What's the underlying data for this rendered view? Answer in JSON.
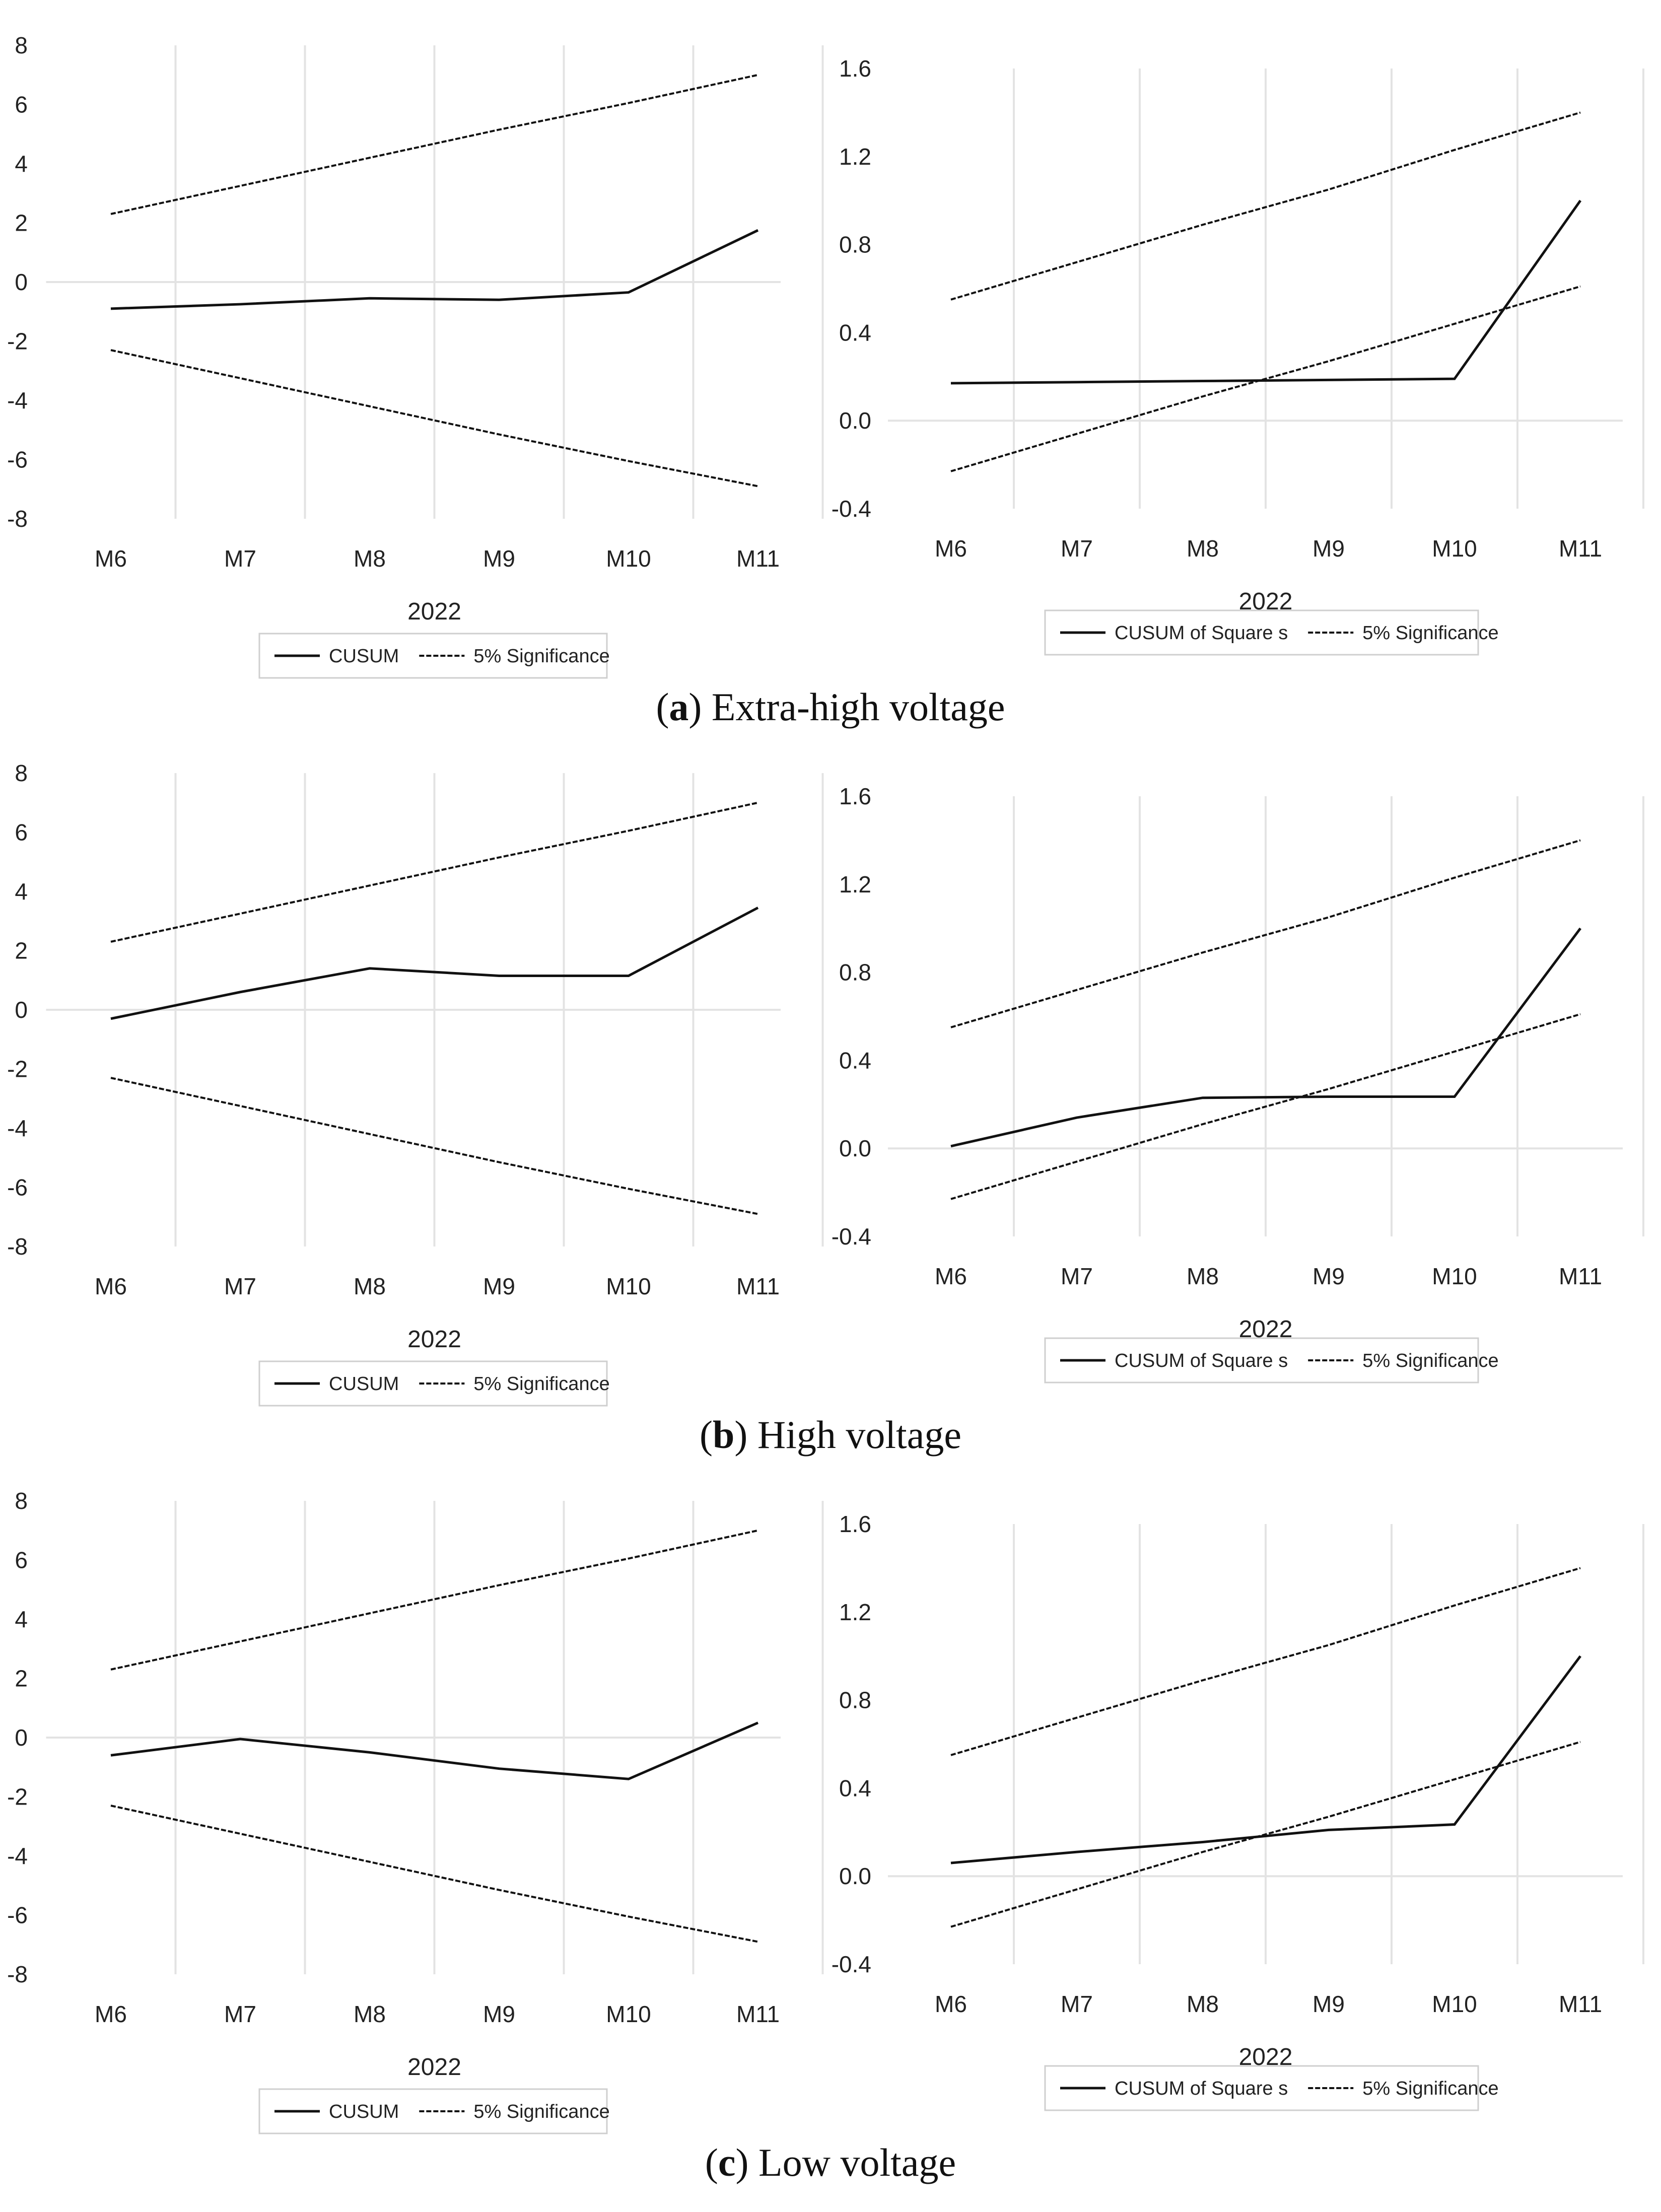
{
  "captions": [
    {
      "letter": "a",
      "text": "Extra-high voltage"
    },
    {
      "letter": "b",
      "text": "High voltage"
    },
    {
      "letter": "c",
      "text": "Low voltage"
    }
  ],
  "chart_data": [
    {
      "type": "line",
      "panel": "a",
      "chart": "cusum",
      "x": [
        "M6",
        "M7",
        "M8",
        "M9",
        "M10",
        "M11"
      ],
      "xlabel": "2022",
      "yticks": [
        "8",
        "6",
        "4",
        "2",
        "0",
        "-2",
        "-4",
        "-6",
        "-8"
      ],
      "ylim": [
        -8,
        8
      ],
      "series": [
        {
          "name": "CUSUM",
          "style": "solid",
          "values": [
            -0.9,
            -0.75,
            -0.55,
            -0.6,
            -0.35,
            1.75
          ]
        },
        {
          "name": "5% Significance",
          "style": "dashed",
          "values": [
            2.3,
            3.25,
            4.2,
            5.15,
            6.05,
            7.0
          ]
        },
        {
          "name": "5% Significance",
          "style": "dashed",
          "legend": false,
          "values": [
            -2.3,
            -3.25,
            -4.2,
            -5.15,
            -6.05,
            -6.9
          ]
        }
      ]
    },
    {
      "type": "line",
      "panel": "a",
      "chart": "cusumsq",
      "x": [
        "M6",
        "M7",
        "M8",
        "M9",
        "M10",
        "M11"
      ],
      "xlabel": "2022",
      "yticks": [
        "1.6",
        "1.2",
        "0.8",
        "0.4",
        "0.0",
        "-0.4"
      ],
      "ylim": [
        -0.4,
        1.6
      ],
      "series": [
        {
          "name": "CUSUM of Square s",
          "style": "solid",
          "values": [
            0.17,
            0.175,
            0.18,
            0.185,
            0.19,
            1.0
          ]
        },
        {
          "name": "5% Significance",
          "style": "dashed",
          "values": [
            0.55,
            0.72,
            0.89,
            1.05,
            1.23,
            1.4
          ]
        },
        {
          "name": "5% Significance",
          "style": "dashed",
          "legend": false,
          "values": [
            -0.23,
            -0.06,
            0.11,
            0.27,
            0.44,
            0.61
          ]
        }
      ]
    },
    {
      "type": "line",
      "panel": "b",
      "chart": "cusum",
      "x": [
        "M6",
        "M7",
        "M8",
        "M9",
        "M10",
        "M11"
      ],
      "xlabel": "2022",
      "yticks": [
        "8",
        "6",
        "4",
        "2",
        "0",
        "-2",
        "-4",
        "-6",
        "-8"
      ],
      "ylim": [
        -8,
        8
      ],
      "series": [
        {
          "name": "CUSUM",
          "style": "solid",
          "values": [
            -0.3,
            0.6,
            1.4,
            1.15,
            1.15,
            3.45
          ]
        },
        {
          "name": "5% Significance",
          "style": "dashed",
          "values": [
            2.3,
            3.25,
            4.2,
            5.15,
            6.05,
            7.0
          ]
        },
        {
          "name": "5% Significance",
          "style": "dashed",
          "legend": false,
          "values": [
            -2.3,
            -3.25,
            -4.2,
            -5.15,
            -6.05,
            -6.9
          ]
        }
      ]
    },
    {
      "type": "line",
      "panel": "b",
      "chart": "cusumsq",
      "x": [
        "M6",
        "M7",
        "M8",
        "M9",
        "M10",
        "M11"
      ],
      "xlabel": "2022",
      "yticks": [
        "1.6",
        "1.2",
        "0.8",
        "0.4",
        "0.0",
        "-0.4"
      ],
      "ylim": [
        -0.4,
        1.6
      ],
      "series": [
        {
          "name": "CUSUM of Square s",
          "style": "solid",
          "values": [
            0.01,
            0.14,
            0.23,
            0.235,
            0.235,
            1.0
          ]
        },
        {
          "name": "5% Significance",
          "style": "dashed",
          "values": [
            0.55,
            0.72,
            0.89,
            1.05,
            1.23,
            1.4
          ]
        },
        {
          "name": "5% Significance",
          "style": "dashed",
          "legend": false,
          "values": [
            -0.23,
            -0.06,
            0.11,
            0.27,
            0.44,
            0.61
          ]
        }
      ]
    },
    {
      "type": "line",
      "panel": "c",
      "chart": "cusum",
      "x": [
        "M6",
        "M7",
        "M8",
        "M9",
        "M10",
        "M11"
      ],
      "xlabel": "2022",
      "yticks": [
        "8",
        "6",
        "4",
        "2",
        "0",
        "-2",
        "-4",
        "-6",
        "-8"
      ],
      "ylim": [
        -8,
        8
      ],
      "series": [
        {
          "name": "CUSUM",
          "style": "solid",
          "values": [
            -0.6,
            -0.05,
            -0.5,
            -1.05,
            -1.4,
            0.5
          ]
        },
        {
          "name": "5% Significance",
          "style": "dashed",
          "values": [
            2.3,
            3.25,
            4.2,
            5.15,
            6.05,
            7.0
          ]
        },
        {
          "name": "5% Significance",
          "style": "dashed",
          "legend": false,
          "values": [
            -2.3,
            -3.25,
            -4.2,
            -5.15,
            -6.05,
            -6.9
          ]
        }
      ]
    },
    {
      "type": "line",
      "panel": "c",
      "chart": "cusumsq",
      "x": [
        "M6",
        "M7",
        "M8",
        "M9",
        "M10",
        "M11"
      ],
      "xlabel": "2022",
      "yticks": [
        "1.6",
        "1.2",
        "0.8",
        "0.4",
        "0.0",
        "-0.4"
      ],
      "ylim": [
        -0.4,
        1.6
      ],
      "series": [
        {
          "name": "CUSUM of Square s",
          "style": "solid",
          "values": [
            0.06,
            0.11,
            0.155,
            0.21,
            0.235,
            1.0
          ]
        },
        {
          "name": "5% Significance",
          "style": "dashed",
          "values": [
            0.55,
            0.72,
            0.89,
            1.05,
            1.23,
            1.4
          ]
        },
        {
          "name": "5% Significance",
          "style": "dashed",
          "legend": false,
          "values": [
            -0.23,
            -0.06,
            0.11,
            0.27,
            0.44,
            0.61
          ]
        }
      ]
    }
  ]
}
